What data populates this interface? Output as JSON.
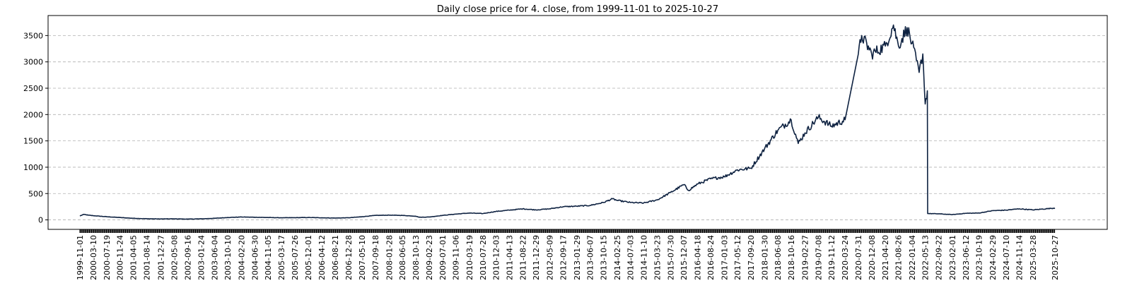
{
  "chart_data": {
    "type": "line",
    "title": "Daily close price for 4. close, from 1999-11-01 to 2025-10-27",
    "xlabel": "",
    "ylabel": "",
    "x_scale": "date",
    "x_range": [
      "1999-11-01",
      "2025-10-27"
    ],
    "ylim": [
      -180,
      3880
    ],
    "y_ticks": [
      0,
      500,
      1000,
      1500,
      2000,
      2500,
      3000,
      3500
    ],
    "grid": {
      "x": false,
      "y": true,
      "style": "dashed",
      "color": "#b0b0b0"
    },
    "legend": "none",
    "line_color": "#0d2140",
    "x_tick_labels": [
      "1999-11-01",
      "2000-03-10",
      "2000-07-19",
      "2000-11-24",
      "2001-04-05",
      "2001-08-14",
      "2001-12-27",
      "2002-05-08",
      "2002-09-16",
      "2003-01-24",
      "2003-06-04",
      "2003-10-10",
      "2004-02-20",
      "2004-06-30",
      "2004-11-05",
      "2005-03-17",
      "2005-07-26",
      "2005-12-01",
      "2006-04-12",
      "2006-08-21",
      "2006-12-28",
      "2007-05-10",
      "2007-09-18",
      "2008-01-28",
      "2008-06-05",
      "2008-10-13",
      "2009-02-23",
      "2009-07-01",
      "2009-11-06",
      "2010-03-19",
      "2010-07-28",
      "2010-12-03",
      "2011-04-13",
      "2011-08-22",
      "2011-12-29",
      "2012-05-09",
      "2012-09-17",
      "2013-01-29",
      "2013-06-07",
      "2013-10-15",
      "2014-02-25",
      "2014-07-03",
      "2014-11-10",
      "2015-03-23",
      "2015-07-30",
      "2015-12-07",
      "2016-04-18",
      "2016-08-24",
      "2017-01-03",
      "2017-05-12",
      "2017-09-20",
      "2018-01-30",
      "2018-06-08",
      "2018-10-16",
      "2019-02-27",
      "2019-07-08",
      "2019-11-12",
      "2020-03-24",
      "2020-07-31",
      "2020-12-08",
      "2021-04-20",
      "2021-08-26",
      "2022-01-04",
      "2022-05-13",
      "2022-09-22",
      "2023-02-01",
      "2023-06-12",
      "2023-10-19",
      "2024-02-29",
      "2024-07-10",
      "2024-11-14",
      "2025-03-28",
      "2025-10-27"
    ],
    "series": [
      {
        "points": [
          [
            "1999-11-01",
            75
          ],
          [
            "1999-12-10",
            105
          ],
          [
            "2000-01-20",
            90
          ],
          [
            "2000-03-10",
            80
          ],
          [
            "2000-07-19",
            60
          ],
          [
            "2000-11-24",
            45
          ],
          [
            "2001-04-05",
            30
          ],
          [
            "2001-08-14",
            22
          ],
          [
            "2001-12-27",
            18
          ],
          [
            "2002-05-08",
            20
          ],
          [
            "2002-09-16",
            15
          ],
          [
            "2003-01-24",
            20
          ],
          [
            "2003-06-04",
            30
          ],
          [
            "2003-10-10",
            45
          ],
          [
            "2004-02-20",
            55
          ],
          [
            "2004-06-30",
            50
          ],
          [
            "2004-11-05",
            45
          ],
          [
            "2005-03-17",
            40
          ],
          [
            "2005-07-26",
            42
          ],
          [
            "2005-12-01",
            45
          ],
          [
            "2006-04-12",
            40
          ],
          [
            "2006-08-21",
            35
          ],
          [
            "2006-12-28",
            40
          ],
          [
            "2007-05-10",
            60
          ],
          [
            "2007-09-18",
            85
          ],
          [
            "2008-01-28",
            90
          ],
          [
            "2008-06-05",
            85
          ],
          [
            "2008-10-13",
            70
          ],
          [
            "2008-11-20",
            50
          ],
          [
            "2009-02-23",
            55
          ],
          [
            "2009-07-01",
            85
          ],
          [
            "2009-11-06",
            110
          ],
          [
            "2010-03-19",
            130
          ],
          [
            "2010-07-28",
            120
          ],
          [
            "2010-12-03",
            160
          ],
          [
            "2011-04-13",
            185
          ],
          [
            "2011-08-22",
            210
          ],
          [
            "2011-12-29",
            190
          ],
          [
            "2012-05-09",
            210
          ],
          [
            "2012-09-17",
            250
          ],
          [
            "2013-01-29",
            260
          ],
          [
            "2013-06-07",
            275
          ],
          [
            "2013-10-15",
            330
          ],
          [
            "2014-01-10",
            400
          ],
          [
            "2014-02-25",
            370
          ],
          [
            "2014-07-03",
            330
          ],
          [
            "2014-11-10",
            320
          ],
          [
            "2015-03-23",
            380
          ],
          [
            "2015-07-30",
            520
          ],
          [
            "2015-12-07",
            670
          ],
          [
            "2016-01-20",
            560
          ],
          [
            "2016-04-18",
            680
          ],
          [
            "2016-08-24",
            780
          ],
          [
            "2017-01-03",
            820
          ],
          [
            "2017-05-12",
            950
          ],
          [
            "2017-09-20",
            980
          ],
          [
            "2018-01-30",
            1350
          ],
          [
            "2018-06-08",
            1700
          ],
          [
            "2018-10-16",
            1900
          ],
          [
            "2018-12-24",
            1450
          ],
          [
            "2019-02-27",
            1650
          ],
          [
            "2019-07-08",
            1950
          ],
          [
            "2019-11-12",
            1780
          ],
          [
            "2020-03-24",
            1900
          ],
          [
            "2020-07-31",
            3150
          ],
          [
            "2020-09-02",
            3500
          ],
          [
            "2020-12-08",
            3150
          ],
          [
            "2021-04-20",
            3300
          ],
          [
            "2021-07-08",
            3700
          ],
          [
            "2021-08-26",
            3300
          ],
          [
            "2021-11-18",
            3650
          ],
          [
            "2022-01-04",
            3350
          ],
          [
            "2022-03-15",
            2800
          ],
          [
            "2022-04-20",
            3150
          ],
          [
            "2022-05-13",
            2200
          ],
          [
            "2022-06-03",
            2450
          ],
          [
            "2022-06-06",
            120
          ],
          [
            "2022-09-22",
            115
          ],
          [
            "2023-02-01",
            100
          ],
          [
            "2023-06-12",
            125
          ],
          [
            "2023-10-19",
            130
          ],
          [
            "2024-02-29",
            175
          ],
          [
            "2024-07-10",
            185
          ],
          [
            "2024-11-14",
            210
          ],
          [
            "2025-03-28",
            190
          ],
          [
            "2025-10-27",
            225
          ]
        ]
      }
    ]
  }
}
